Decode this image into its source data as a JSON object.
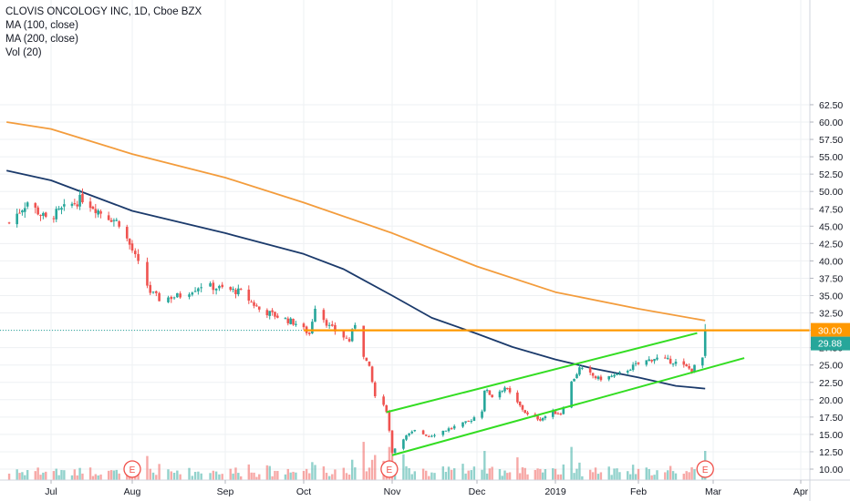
{
  "legend": {
    "title": "CLOVIS ONCOLOGY INC, 1D, Cboe BZX",
    "ma100": "MA (100, close)",
    "ma200": "MA (200, close)",
    "vol": "Vol (20)"
  },
  "colors": {
    "up": "#26a69a",
    "down": "#ef5350",
    "ma100": "#1b3a6b",
    "ma200": "#f39c3c",
    "channel": "#33dd22",
    "hline": "#ff9800",
    "price_tag_bg": "#26a69a",
    "hline_tag_bg": "#ff9800",
    "event_circle": "#f0504a"
  },
  "chart_data": {
    "type": "candlestick",
    "symbol": "CLOVIS ONCOLOGY INC",
    "timeframe": "1D",
    "exchange": "Cboe BZX",
    "y_axis": {
      "ylim": [
        9.2,
        63.8
      ],
      "ticks": [
        "10.00",
        "12.50",
        "15.00",
        "17.50",
        "20.00",
        "22.50",
        "25.00",
        "27.50",
        "30.00",
        "32.50",
        "35.00",
        "37.50",
        "40.00",
        "42.50",
        "45.00",
        "47.50",
        "50.00",
        "52.50",
        "55.00",
        "57.50",
        "60.00",
        "62.50"
      ]
    },
    "x_axis": {
      "labels": [
        {
          "label": "Jul",
          "date": "2018-07-01"
        },
        {
          "label": "Aug",
          "date": "2018-08-01"
        },
        {
          "label": "Sep",
          "date": "2018-09-01"
        },
        {
          "label": "Oct",
          "date": "2018-10-01"
        },
        {
          "label": "Nov",
          "date": "2018-11-01"
        },
        {
          "label": "Dec",
          "date": "2018-12-01"
        },
        {
          "label": "2019",
          "date": "2019-01-01"
        },
        {
          "label": "Feb",
          "date": "2019-02-01"
        },
        {
          "label": "Mar",
          "date": "2019-03-01"
        },
        {
          "label": "Apr",
          "date": "2019-04-01"
        }
      ]
    },
    "price_path": [
      [
        "2018-06-15",
        45.5
      ],
      [
        "2018-06-22",
        48.5
      ],
      [
        "2018-06-29",
        46.0
      ],
      [
        "2018-07-06",
        47.5
      ],
      [
        "2018-07-13",
        49.0
      ],
      [
        "2018-07-20",
        47.0
      ],
      [
        "2018-07-27",
        45.5
      ],
      [
        "2018-08-01",
        41.5
      ],
      [
        "2018-08-03",
        39.5
      ],
      [
        "2018-08-07",
        35.5
      ],
      [
        "2018-08-10",
        34.5
      ],
      [
        "2018-08-17",
        35.0
      ],
      [
        "2018-08-24",
        36.5
      ],
      [
        "2018-08-31",
        36.0
      ],
      [
        "2018-09-07",
        35.5
      ],
      [
        "2018-09-14",
        33.0
      ],
      [
        "2018-09-21",
        32.0
      ],
      [
        "2018-09-28",
        31.0
      ],
      [
        "2018-10-03",
        29.5
      ],
      [
        "2018-10-05",
        33.5
      ],
      [
        "2018-10-10",
        30.5
      ],
      [
        "2018-10-17",
        28.5
      ],
      [
        "2018-10-19",
        31.0
      ],
      [
        "2018-10-22",
        26.5
      ],
      [
        "2018-10-24",
        24.5
      ],
      [
        "2018-10-26",
        20.5
      ],
      [
        "2018-10-30",
        18.5
      ],
      [
        "2018-11-01",
        12.5
      ],
      [
        "2018-11-05",
        14.5
      ],
      [
        "2018-11-09",
        15.5
      ],
      [
        "2018-11-14",
        14.8
      ],
      [
        "2018-11-21",
        15.8
      ],
      [
        "2018-11-28",
        16.8
      ],
      [
        "2018-12-03",
        18.5
      ],
      [
        "2018-12-04",
        21.5
      ],
      [
        "2018-12-07",
        20.5
      ],
      [
        "2018-12-12",
        21.8
      ],
      [
        "2018-12-17",
        19.5
      ],
      [
        "2018-12-21",
        17.8
      ],
      [
        "2018-12-26",
        17.2
      ],
      [
        "2018-12-31",
        18.2
      ],
      [
        "2019-01-03",
        18.0
      ],
      [
        "2019-01-07",
        22.5
      ],
      [
        "2019-01-10",
        24.5
      ],
      [
        "2019-01-17",
        23.0
      ],
      [
        "2019-01-24",
        23.5
      ],
      [
        "2019-01-31",
        25.0
      ],
      [
        "2019-02-07",
        26.0
      ],
      [
        "2019-02-14",
        25.5
      ],
      [
        "2019-02-21",
        24.3
      ],
      [
        "2019-02-25",
        26.0
      ],
      [
        "2019-02-26",
        29.88
      ]
    ],
    "ma100": [
      [
        "2018-06-14",
        53.0
      ],
      [
        "2018-07-01",
        51.6
      ],
      [
        "2018-08-01",
        47.2
      ],
      [
        "2018-09-01",
        44.0
      ],
      [
        "2018-10-01",
        41.0
      ],
      [
        "2018-10-15",
        38.8
      ],
      [
        "2018-11-01",
        35.0
      ],
      [
        "2018-11-15",
        31.8
      ],
      [
        "2018-12-01",
        29.5
      ],
      [
        "2018-12-15",
        27.6
      ],
      [
        "2019-01-01",
        25.8
      ],
      [
        "2019-01-15",
        24.5
      ],
      [
        "2019-02-01",
        23.2
      ],
      [
        "2019-02-15",
        22.0
      ],
      [
        "2019-02-26",
        21.6
      ]
    ],
    "ma200": [
      [
        "2018-06-14",
        60.0
      ],
      [
        "2018-07-01",
        59.0
      ],
      [
        "2018-08-01",
        55.4
      ],
      [
        "2018-09-01",
        52.0
      ],
      [
        "2018-10-01",
        48.4
      ],
      [
        "2018-11-01",
        44.0
      ],
      [
        "2018-12-01",
        39.2
      ],
      [
        "2019-01-01",
        35.5
      ],
      [
        "2019-02-01",
        33.1
      ],
      [
        "2019-02-26",
        31.4
      ]
    ],
    "channel_upper": [
      [
        "2018-10-30",
        18.2
      ],
      [
        "2019-02-23",
        29.6
      ]
    ],
    "channel_lower": [
      [
        "2018-11-01",
        12.0
      ],
      [
        "2019-03-12",
        26.0
      ]
    ],
    "horizontal_level": 30.0,
    "price_labels": {
      "level": "30.00",
      "last": "29.88"
    },
    "last_price": 29.88,
    "earnings_markers": [
      {
        "label": "E",
        "date": "2018-08-01"
      },
      {
        "label": "E",
        "date": "2018-10-31"
      },
      {
        "label": "E",
        "date": "2019-02-26"
      }
    ]
  }
}
